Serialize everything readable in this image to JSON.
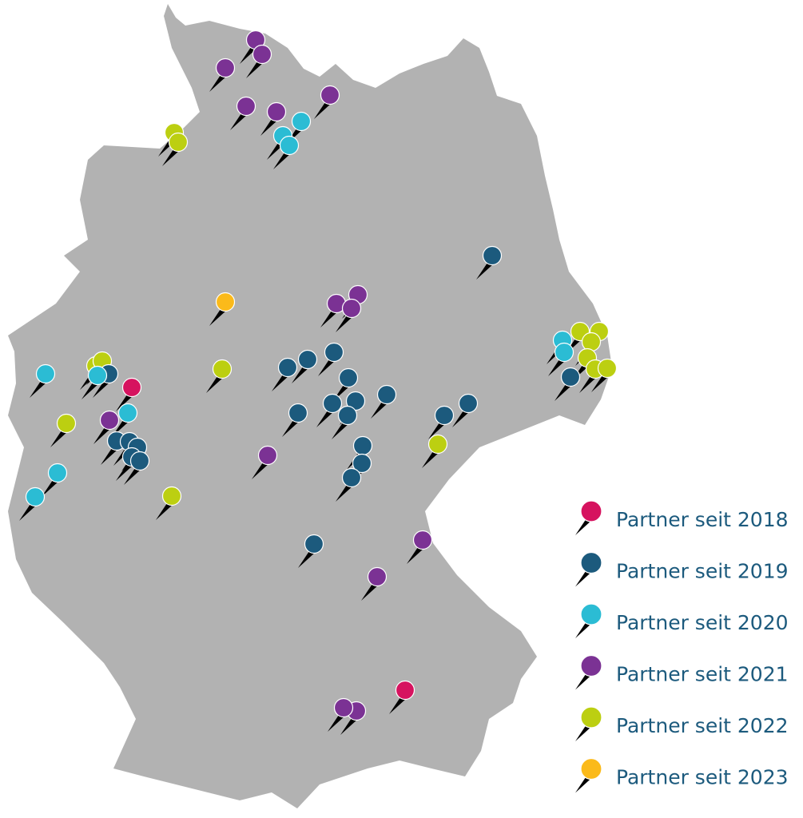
{
  "legend": [
    {
      "label": "Partner seit 2018",
      "color": "#d6135f"
    },
    {
      "label": "Partner seit 2019",
      "color": "#1c5a7d"
    },
    {
      "label": "Partner seit 2020",
      "color": "#2bbcd4"
    },
    {
      "label": "Partner seit 2021",
      "color": "#7b3294"
    },
    {
      "label": "Partner seit 2022",
      "color": "#bccf11"
    },
    {
      "label": "Partner seit 2023",
      "color": "#fbba1a"
    }
  ]
}
